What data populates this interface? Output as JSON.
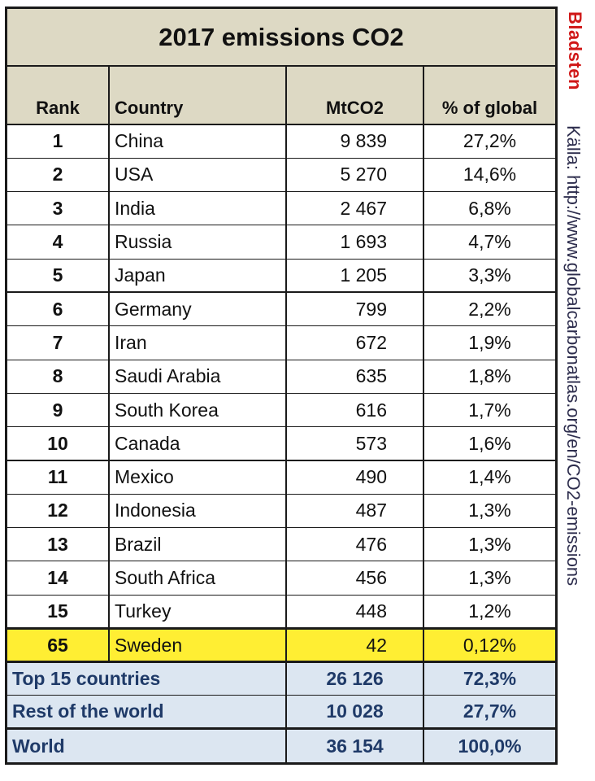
{
  "title": "2017 emissions CO2",
  "headers": {
    "rank": "Rank",
    "country": "Country",
    "mtco2": "MtCO2",
    "pct": "% of global"
  },
  "rows": [
    {
      "rank": "1",
      "country": "China",
      "mtco2": "9 839",
      "pct": "27,2%"
    },
    {
      "rank": "2",
      "country": "USA",
      "mtco2": "5 270",
      "pct": "14,6%"
    },
    {
      "rank": "3",
      "country": "India",
      "mtco2": "2 467",
      "pct": "6,8%"
    },
    {
      "rank": "4",
      "country": "Russia",
      "mtco2": "1 693",
      "pct": "4,7%"
    },
    {
      "rank": "5",
      "country": "Japan",
      "mtco2": "1 205",
      "pct": "3,3%"
    },
    {
      "rank": "6",
      "country": "Germany",
      "mtco2": "799",
      "pct": "2,2%"
    },
    {
      "rank": "7",
      "country": "Iran",
      "mtco2": "672",
      "pct": "1,9%"
    },
    {
      "rank": "8",
      "country": "Saudi Arabia",
      "mtco2": "635",
      "pct": "1,8%"
    },
    {
      "rank": "9",
      "country": "South Korea",
      "mtco2": "616",
      "pct": "1,7%"
    },
    {
      "rank": "10",
      "country": "Canada",
      "mtco2": "573",
      "pct": "1,6%"
    },
    {
      "rank": "11",
      "country": "Mexico",
      "mtco2": "490",
      "pct": "1,4%"
    },
    {
      "rank": "12",
      "country": "Indonesia",
      "mtco2": "487",
      "pct": "1,3%"
    },
    {
      "rank": "13",
      "country": "Brazil",
      "mtco2": "476",
      "pct": "1,3%"
    },
    {
      "rank": "14",
      "country": "South Africa",
      "mtco2": "456",
      "pct": "1,3%"
    },
    {
      "rank": "15",
      "country": "Turkey",
      "mtco2": "448",
      "pct": "1,2%"
    }
  ],
  "highlight": {
    "rank": "65",
    "country": "Sweden",
    "mtco2": "42",
    "pct": "0,12%"
  },
  "summary": [
    {
      "label": "Top 15 countries",
      "mtco2": "26 126",
      "pct": "72,3%"
    },
    {
      "label": "Rest of the world",
      "mtco2": "10 028",
      "pct": "27,7%"
    },
    {
      "label": "World",
      "mtco2": "36 154",
      "pct": "100,0%"
    }
  ],
  "side": {
    "author": "Bladsten",
    "source": "Källa: http://www.globalcarbonatlas.org/en/CO2-emissions"
  },
  "colors": {
    "header_bg": "#ddd9c4",
    "highlight_bg": "#ffee33",
    "summary_bg": "#dce6f1",
    "summary_text": "#1f3a68",
    "author_text": "#d01818"
  }
}
